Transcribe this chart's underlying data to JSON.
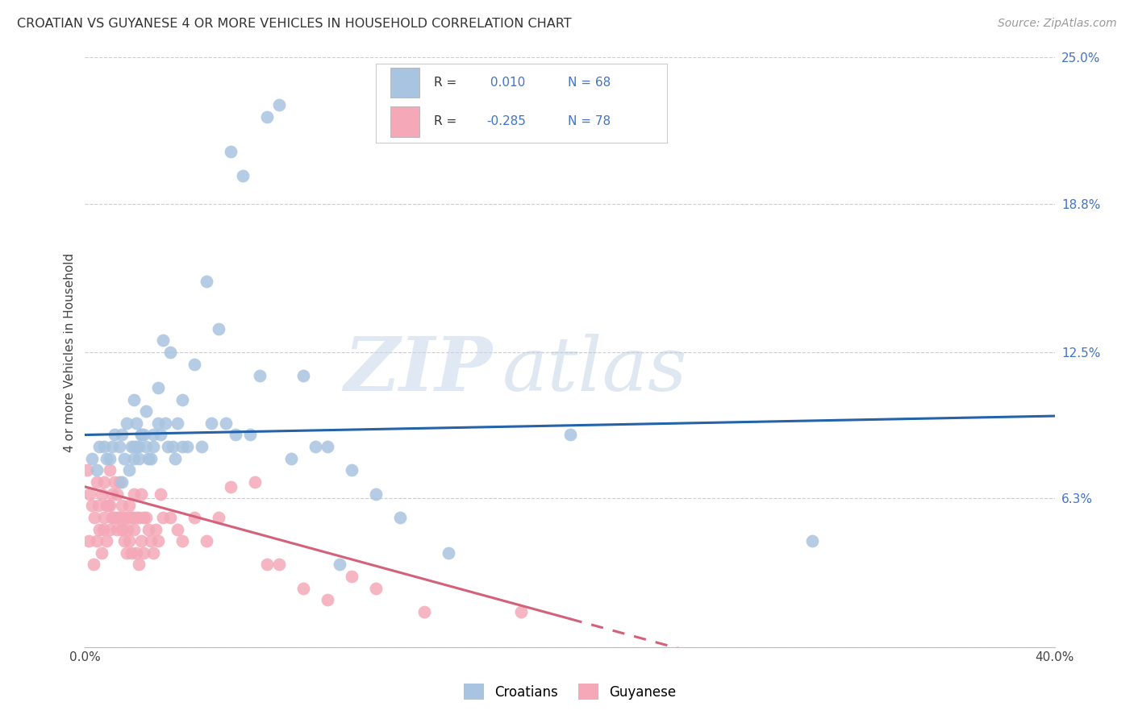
{
  "title": "CROATIAN VS GUYANESE 4 OR MORE VEHICLES IN HOUSEHOLD CORRELATION CHART",
  "source": "Source: ZipAtlas.com",
  "ylabel": "4 or more Vehicles in Household",
  "xlim": [
    0.0,
    40.0
  ],
  "ylim": [
    0.0,
    25.0
  ],
  "ytick_vals": [
    0.0,
    6.3,
    12.5,
    18.8,
    25.0
  ],
  "ytick_labels": [
    "",
    "6.3%",
    "12.5%",
    "18.8%",
    "25.0%"
  ],
  "xtick_vals": [
    0.0,
    40.0
  ],
  "xtick_labels": [
    "0.0%",
    "40.0%"
  ],
  "background_color": "#ffffff",
  "watermark_zip": "ZIP",
  "watermark_atlas": "atlas",
  "croatian_color": "#a8c4e0",
  "guyanese_color": "#f4a8b8",
  "trendline_croatian_color": "#2563a8",
  "trendline_guyanese_color": "#d4607a",
  "gridline_color": "#cccccc",
  "legend_text_color": "#4472c4",
  "legend_label_color": "#333333",
  "R_croatian": "0.010",
  "N_croatian": "68",
  "R_guyanese": "-0.285",
  "N_guyanese": "78",
  "croatian_trendline_intercept": 9.0,
  "croatian_trendline_slope": 0.02,
  "guyanese_trendline_intercept": 6.8,
  "guyanese_trendline_slope": -0.28,
  "croatian_x": [
    1.0,
    1.5,
    1.8,
    2.0,
    2.0,
    2.1,
    2.2,
    2.3,
    2.5,
    2.8,
    3.0,
    3.2,
    3.5,
    3.8,
    4.0,
    4.5,
    5.0,
    5.5,
    6.0,
    6.5,
    7.5,
    8.0,
    9.0,
    10.0,
    11.0,
    12.0,
    13.0,
    15.0,
    20.0,
    30.0,
    0.5,
    0.8,
    1.2,
    1.5,
    1.7,
    2.0,
    2.2,
    2.4,
    2.6,
    2.8,
    3.1,
    3.4,
    3.7,
    4.2,
    4.8,
    5.2,
    5.8,
    6.2,
    6.8,
    7.2,
    8.5,
    9.5,
    10.5,
    0.3,
    0.6,
    0.9,
    1.1,
    1.4,
    1.6,
    1.9,
    2.1,
    2.3,
    2.5,
    2.7,
    3.0,
    3.3,
    3.6,
    4.0
  ],
  "croatian_y": [
    8.0,
    7.0,
    7.5,
    8.5,
    10.5,
    9.5,
    8.0,
    9.0,
    10.0,
    9.0,
    11.0,
    13.0,
    12.5,
    9.5,
    10.5,
    12.0,
    15.5,
    13.5,
    21.0,
    20.0,
    22.5,
    23.0,
    11.5,
    8.5,
    7.5,
    6.5,
    5.5,
    4.0,
    9.0,
    4.5,
    7.5,
    8.5,
    9.0,
    9.0,
    9.5,
    8.0,
    8.5,
    9.0,
    8.0,
    8.5,
    9.0,
    8.5,
    8.0,
    8.5,
    8.5,
    9.5,
    9.5,
    9.0,
    9.0,
    11.5,
    8.0,
    8.5,
    3.5,
    8.0,
    8.5,
    8.0,
    8.5,
    8.5,
    8.0,
    8.5,
    8.5,
    9.0,
    8.5,
    8.0,
    9.5,
    9.5,
    8.5,
    8.5
  ],
  "guyanese_x": [
    0.1,
    0.2,
    0.3,
    0.4,
    0.5,
    0.5,
    0.6,
    0.7,
    0.7,
    0.8,
    0.8,
    0.9,
    0.9,
    1.0,
    1.0,
    1.0,
    1.1,
    1.1,
    1.2,
    1.2,
    1.3,
    1.3,
    1.4,
    1.4,
    1.5,
    1.5,
    1.6,
    1.6,
    1.7,
    1.7,
    1.8,
    1.8,
    1.9,
    1.9,
    2.0,
    2.0,
    2.1,
    2.1,
    2.2,
    2.2,
    2.3,
    2.3,
    2.4,
    2.4,
    2.5,
    2.6,
    2.7,
    2.8,
    2.9,
    3.0,
    3.1,
    3.2,
    3.5,
    3.8,
    4.0,
    4.5,
    5.0,
    5.5,
    6.0,
    7.0,
    7.5,
    8.0,
    9.0,
    10.0,
    11.0,
    12.0,
    14.0,
    18.0,
    0.15,
    0.35,
    0.55,
    0.75,
    0.95,
    1.15,
    1.35,
    1.55,
    1.75,
    1.95
  ],
  "guyanese_y": [
    7.5,
    6.5,
    6.0,
    5.5,
    7.0,
    4.5,
    5.0,
    6.5,
    4.0,
    7.0,
    5.5,
    6.0,
    4.5,
    7.5,
    6.0,
    5.0,
    6.5,
    5.5,
    7.0,
    5.5,
    6.5,
    5.0,
    7.0,
    5.5,
    6.0,
    5.0,
    5.5,
    4.5,
    5.5,
    4.0,
    6.0,
    4.5,
    5.5,
    4.0,
    6.5,
    5.0,
    5.5,
    4.0,
    5.5,
    3.5,
    6.5,
    4.5,
    5.5,
    4.0,
    5.5,
    5.0,
    4.5,
    4.0,
    5.0,
    4.5,
    6.5,
    5.5,
    5.5,
    5.0,
    4.5,
    5.5,
    4.5,
    5.5,
    6.8,
    7.0,
    3.5,
    3.5,
    2.5,
    2.0,
    3.0,
    2.5,
    1.5,
    1.5,
    4.5,
    3.5,
    6.0,
    5.0,
    6.0,
    5.5,
    5.5,
    5.0,
    5.0,
    5.5
  ]
}
